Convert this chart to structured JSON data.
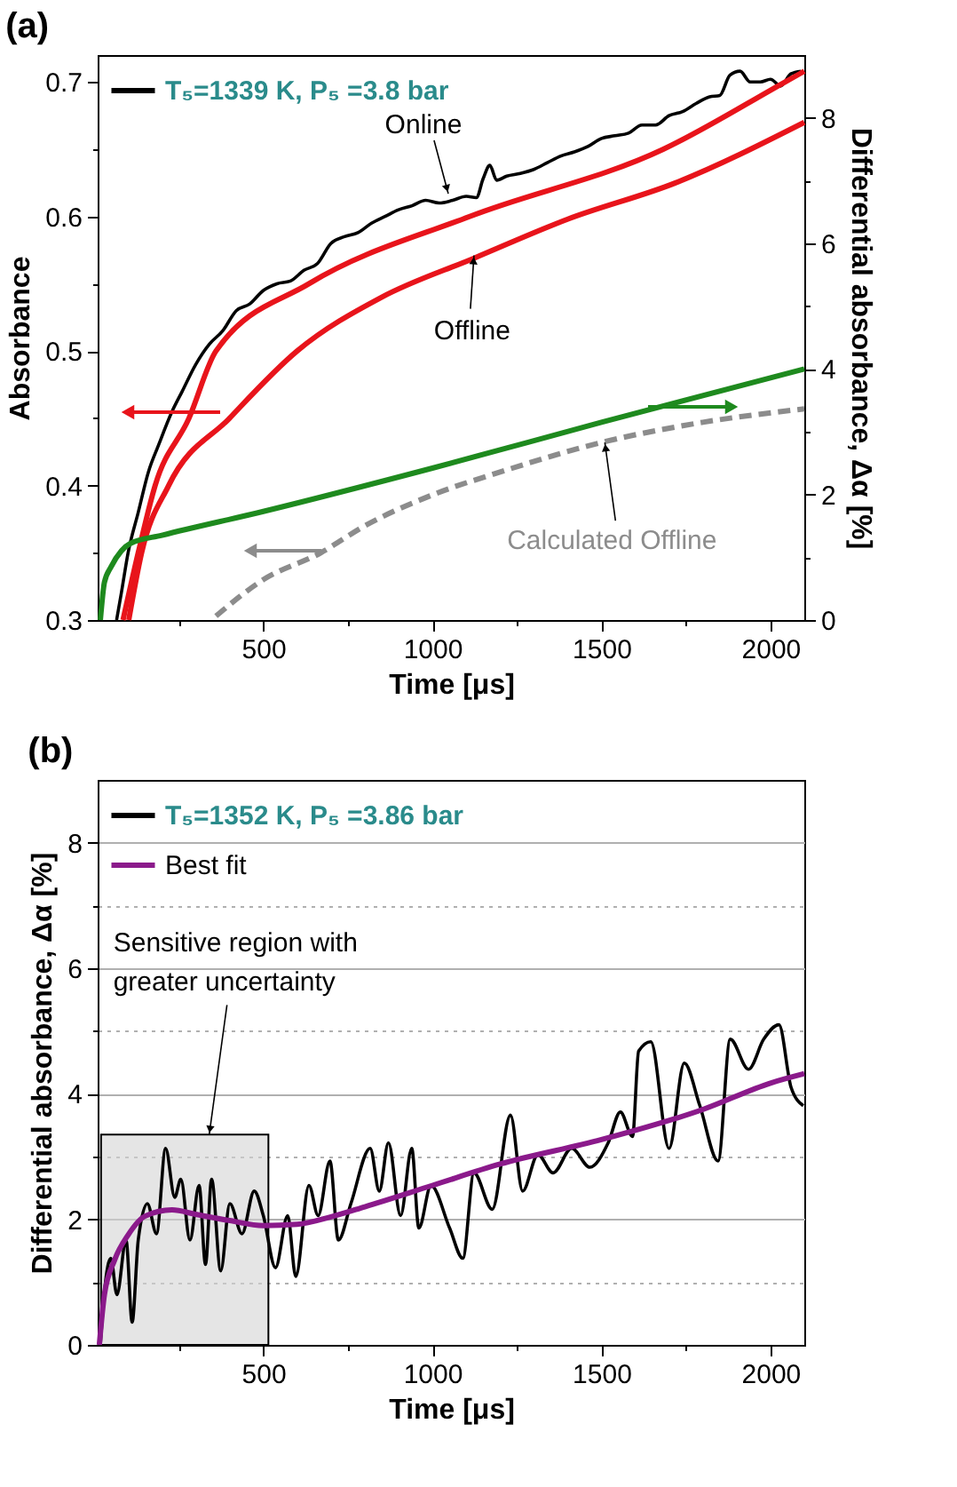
{
  "chart_data": [
    {
      "type": "line",
      "title": "(a)",
      "xlabel": "Time [μs]",
      "ylabel": "Absorbance",
      "y2label": "Differential absorbance, Δα [%]",
      "xlim": [
        10,
        2100
      ],
      "xticks": [
        {
          "value": 250,
          "label": null
        },
        500,
        {
          "value": 750,
          "label": null
        },
        1000,
        {
          "value": 1250,
          "label": null
        },
        1500,
        {
          "value": 1750,
          "label": null
        },
        2000
      ],
      "ylim": [
        0.3,
        0.72
      ],
      "yticks": [
        0.3,
        {
          "value": 0.35,
          "label": null
        },
        0.4,
        {
          "value": 0.45,
          "label": null
        },
        0.5,
        {
          "value": 0.55,
          "label": null
        },
        0.6,
        {
          "value": 0.65,
          "label": null
        },
        0.7
      ],
      "y2lim": [
        0,
        9
      ],
      "y2ticks": [
        0,
        {
          "value": 1,
          "label": null
        },
        2,
        {
          "value": 3,
          "label": null
        },
        4,
        {
          "value": 5,
          "label": null
        },
        6,
        {
          "value": 7,
          "label": null
        },
        8
      ],
      "legend": "top left",
      "annotations": [
        {
          "text": "Online",
          "x": 1047,
          "y": 0.617
        },
        {
          "text": "Offline",
          "x": 1123,
          "y": 0.571
        },
        {
          "text": "Calculated Offline",
          "x": 1510,
          "y": 0.432
        }
      ],
      "series": [
        {
          "name": "T₅=1339 K, P₅ =3.8 bar",
          "color": "#000000",
          "x": [
            66,
            80,
            100,
            130,
            160,
            190,
            230,
            260,
            300,
            340,
            380,
            420,
            460,
            500,
            540,
            580,
            620,
            660,
            700,
            740,
            780,
            820,
            860,
            900,
            940,
            980,
            1020,
            1060,
            1100,
            1130,
            1150,
            1170,
            1190,
            1220,
            1260,
            1300,
            1340,
            1380,
            1420,
            1460,
            1500,
            1540,
            1580,
            1620,
            1660,
            1700,
            1740,
            1780,
            1820,
            1850,
            1880,
            1910,
            1940,
            1970,
            2000,
            2030,
            2060,
            2090
          ],
          "values": [
            0.3,
            0.32,
            0.35,
            0.38,
            0.41,
            0.43,
            0.455,
            0.47,
            0.49,
            0.505,
            0.515,
            0.53,
            0.535,
            0.545,
            0.55,
            0.552,
            0.56,
            0.565,
            0.58,
            0.585,
            0.588,
            0.595,
            0.6,
            0.605,
            0.608,
            0.612,
            0.61,
            0.612,
            0.615,
            0.614,
            0.628,
            0.638,
            0.627,
            0.63,
            0.632,
            0.635,
            0.64,
            0.645,
            0.648,
            0.652,
            0.658,
            0.66,
            0.662,
            0.668,
            0.668,
            0.675,
            0.678,
            0.684,
            0.689,
            0.69,
            0.705,
            0.708,
            0.7,
            0.7,
            0.702,
            0.697,
            0.706,
            0.708
          ]
        },
        {
          "color": "#e8141b",
          "x": [
            85,
            130,
            180,
            280,
            360,
            635,
            1110,
            1683,
            2043,
            2100
          ],
          "values": [
            0.3,
            0.35,
            0.4,
            0.45,
            0.5,
            0.55,
            0.6,
            0.65,
            0.7,
            0.708
          ]
        },
        {
          "color": "#e8141b",
          "x": [
            102,
            140,
            220,
            400,
            600,
            850,
            1123,
            1400,
            1719,
            2100
          ],
          "values": [
            0.3,
            0.35,
            0.4,
            0.45,
            0.5,
            0.54,
            0.569,
            0.598,
            0.625,
            0.67
          ]
        },
        {
          "color": "#1e8a1e",
          "axis": "y2",
          "x": [
            18,
            30,
            50,
            80,
            107,
            200,
            500,
            1000,
            1500,
            2100
          ],
          "values": [
            0,
            0.6,
            0.85,
            1.1,
            1.22,
            1.35,
            1.73,
            2.42,
            3.15,
            4.0
          ]
        },
        {
          "color": "#8c8c8c",
          "line_style": "dashed",
          "x": [
            360,
            500,
            670,
            800,
            1000,
            1200,
            1500,
            1800,
            2100
          ],
          "values": [
            0.303,
            0.33,
            0.35,
            0.37,
            0.393,
            0.41,
            0.432,
            0.447,
            0.457
          ]
        }
      ]
    },
    {
      "type": "line",
      "title": "(b)",
      "xlabel": "Time [μs]",
      "ylabel": "Differential absorbance, Δα [%]",
      "xlim": [
        10,
        2100
      ],
      "xticks": [
        {
          "value": 250,
          "label": null
        },
        500,
        {
          "value": 750,
          "label": null
        },
        1000,
        {
          "value": 1250,
          "label": null
        },
        1500,
        {
          "value": 1750,
          "label": null
        },
        2000
      ],
      "ylim": [
        0,
        9
      ],
      "yticks": [
        0,
        {
          "value": 1,
          "label": null
        },
        2,
        {
          "value": 3,
          "label": null
        },
        4,
        {
          "value": 5,
          "label": null
        },
        6,
        {
          "value": 7,
          "label": null
        },
        8
      ],
      "grid": "y",
      "legend": "top left",
      "bands": [
        {
          "axis": "x",
          "from": 20,
          "to": 515
        }
      ],
      "annotations": [
        {
          "text": "Sensitive region with greater uncertainty",
          "x": 340,
          "y": 3.35
        }
      ],
      "series": [
        {
          "name": "T₅=1352 K, P₅ =3.86 bar",
          "color": "#000000",
          "x": [
            18,
            31,
            49,
            67,
            94,
            112,
            130,
            157,
            184,
            211,
            238,
            256,
            283,
            310,
            329,
            347,
            374,
            401,
            437,
            473,
            500,
            536,
            572,
            596,
            635,
            662,
            697,
            722,
            759,
            816,
            843,
            870,
            906,
            939,
            960,
            996,
            1051,
            1090,
            1123,
            1177,
            1231,
            1267,
            1312,
            1357,
            1412,
            1466,
            1520,
            1556,
            1592,
            1610,
            1646,
            1700,
            1745,
            1791,
            1845,
            1881,
            1935,
            1980,
            2025,
            2061,
            2097
          ],
          "values": [
            0,
            0.9,
            1.38,
            0.8,
            1.67,
            0.36,
            1.67,
            2.25,
            1.77,
            3.13,
            2.35,
            2.64,
            1.67,
            2.54,
            1.28,
            2.64,
            1.18,
            2.25,
            1.77,
            2.45,
            2.06,
            1.23,
            2.06,
            1.09,
            2.54,
            2.06,
            2.93,
            1.67,
            2.25,
            3.13,
            2.45,
            3.22,
            2.06,
            3.13,
            1.86,
            2.54,
            1.86,
            1.38,
            2.74,
            2.16,
            3.66,
            2.45,
            3.03,
            2.74,
            3.13,
            2.83,
            3.22,
            3.71,
            3.32,
            4.68,
            4.83,
            3.13,
            4.49,
            3.81,
            2.93,
            4.87,
            4.39,
            4.87,
            5.1,
            4.1,
            3.81
          ]
        },
        {
          "name": "Best fit",
          "color": "#8b1a8b",
          "x": [
            15,
            30,
            60,
            100,
            150,
            230,
            300,
            400,
            500,
            600,
            700,
            800,
            1000,
            1200,
            1500,
            1800,
            2000,
            2100
          ],
          "values": [
            0,
            0.8,
            1.35,
            1.75,
            2.05,
            2.15,
            2.08,
            1.98,
            1.9,
            1.92,
            2.04,
            2.2,
            2.54,
            2.88,
            3.27,
            3.75,
            4.17,
            4.32
          ]
        }
      ]
    }
  ]
}
